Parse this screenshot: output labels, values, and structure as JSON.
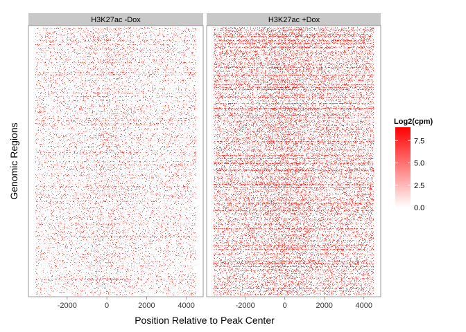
{
  "chart_data": {
    "type": "heatmap",
    "panels": [
      {
        "strip": "H3K27ac -Dox",
        "row_density": 0.24,
        "center_enrichment": 0.45,
        "signal_scale": 0.9
      },
      {
        "strip": "H3K27ac +Dox",
        "row_density": 0.52,
        "center_enrichment": 0.35,
        "signal_scale": 1.0
      }
    ],
    "xlabel": "Position Relative to Peak Center",
    "ylabel": "Genomic Regions",
    "xlim": [
      -3600,
      4500
    ],
    "x_ticks": [
      -2000,
      0,
      2000,
      4000
    ],
    "x_tick_labels": [
      "-2000",
      "0",
      "2000",
      "4000"
    ],
    "legend": {
      "title": "Log2(cpm)",
      "range": [
        0,
        9
      ],
      "ticks": [
        0.0,
        2.5,
        5.0,
        7.5
      ],
      "tick_labels": [
        "0.0",
        "2.5",
        "5.0",
        "7.5"
      ],
      "color_low": "#ffffff",
      "color_high": "#ff0000"
    }
  }
}
